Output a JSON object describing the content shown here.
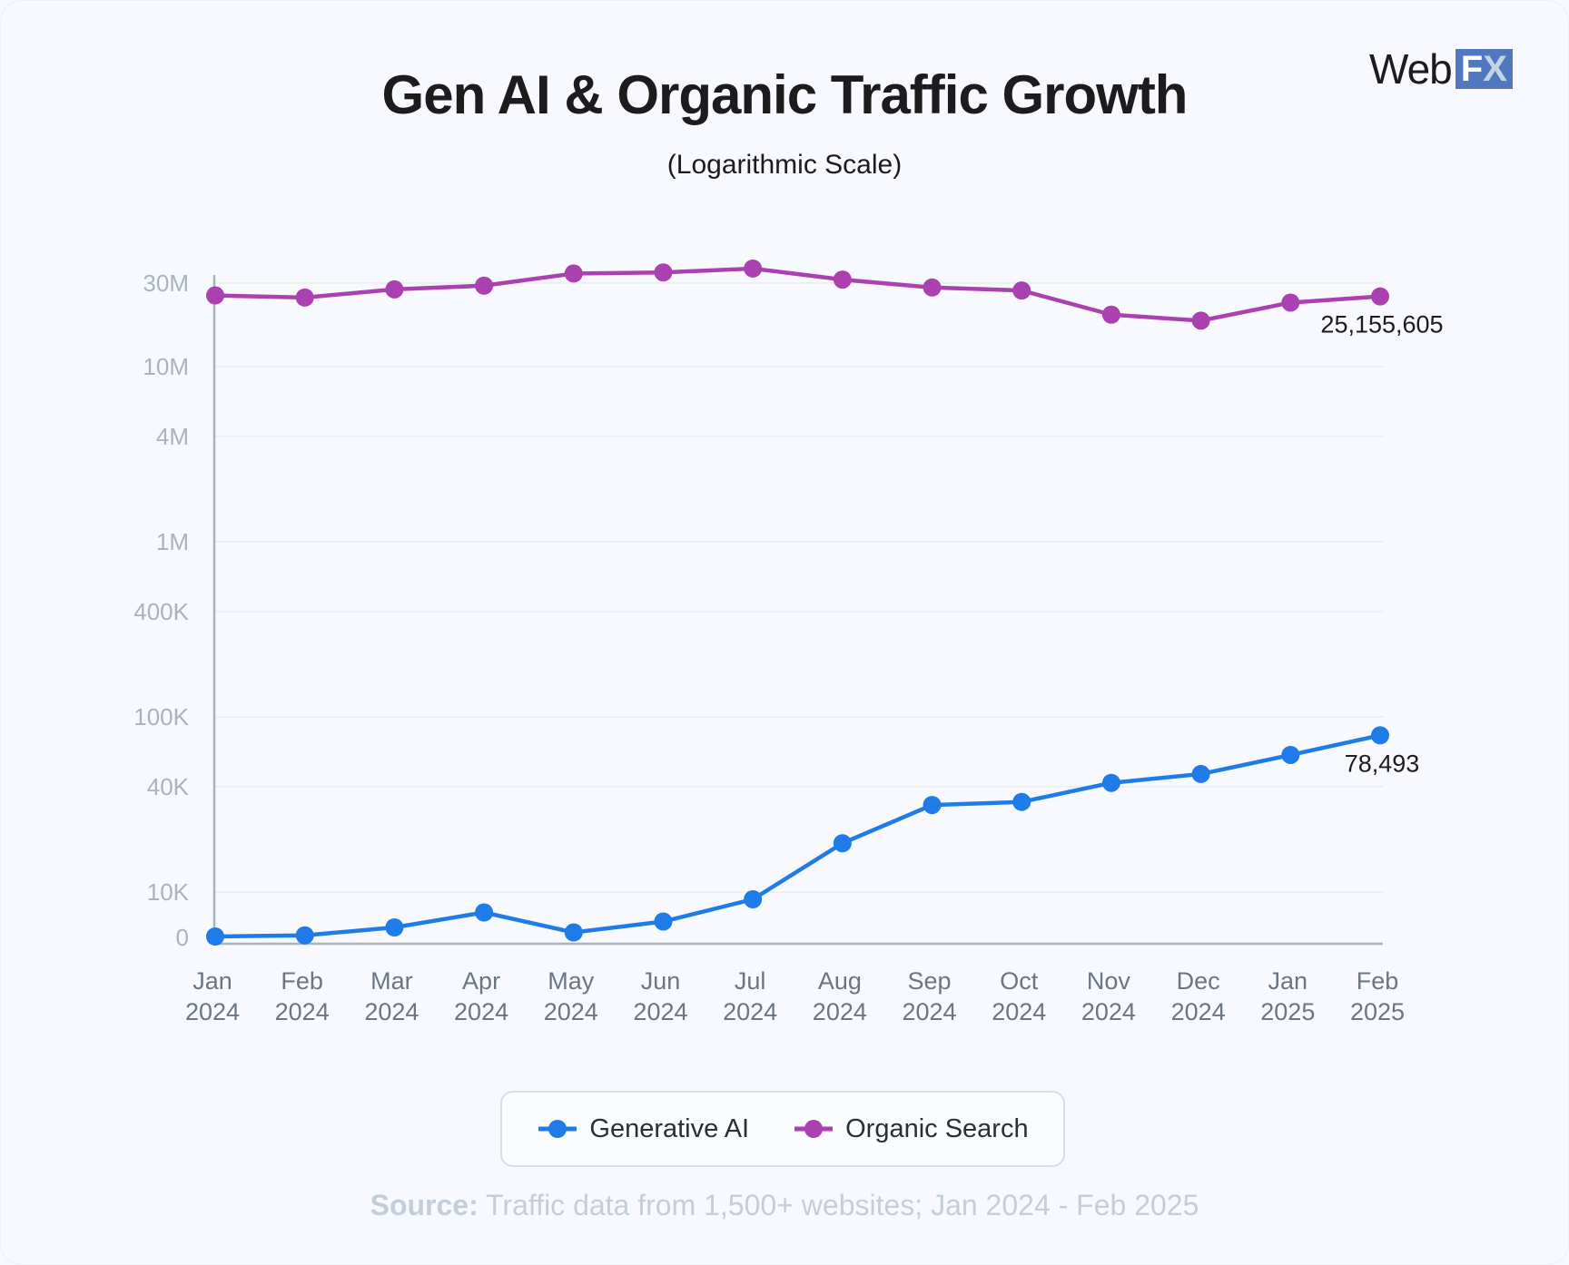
{
  "title": "Gen AI & Organic Traffic Growth",
  "subtitle": "(Logarithmic Scale)",
  "logo": {
    "text": "WebFX",
    "part1": "Web",
    "part2": "FX"
  },
  "source": {
    "label": "Source:",
    "text": "Traffic data from 1,500+ websites;  Jan 2024 - Feb 2025"
  },
  "colors": {
    "generative_ai": "#1f7be8",
    "organic_search": "#ab40b1",
    "grid": "#eceef2",
    "axis": "#a9b3bb"
  },
  "chart_data": {
    "type": "line",
    "title": "Gen AI & Organic Traffic Growth",
    "subtitle": "(Logarithmic Scale)",
    "y_scale": "log",
    "grid": true,
    "legend_placement": "bottom",
    "x": [
      [
        "Jan",
        "2024"
      ],
      [
        "Feb",
        "2024"
      ],
      [
        "Mar",
        "2024"
      ],
      [
        "Apr",
        "2024"
      ],
      [
        "May",
        "2024"
      ],
      [
        "Jun",
        "2024"
      ],
      [
        "Jul",
        "2024"
      ],
      [
        "Aug",
        "2024"
      ],
      [
        "Sep",
        "2024"
      ],
      [
        "Oct",
        "2024"
      ],
      [
        "Nov",
        "2024"
      ],
      [
        "Dec",
        "2024"
      ],
      [
        "Jan",
        "2025"
      ],
      [
        "Feb",
        "2025"
      ]
    ],
    "y_ticks": [
      {
        "value": 0,
        "label": "0"
      },
      {
        "value": 10000,
        "label": "10K"
      },
      {
        "value": 40000,
        "label": "40K"
      },
      {
        "value": 100000,
        "label": "100K"
      },
      {
        "value": 400000,
        "label": "400K"
      },
      {
        "value": 1000000,
        "label": "1M"
      },
      {
        "value": 4000000,
        "label": "4M"
      },
      {
        "value": 10000000,
        "label": "10M"
      },
      {
        "value": 30000000,
        "label": "30M"
      }
    ],
    "series": [
      {
        "name": "Generative AI",
        "color": "#1f7be8",
        "values": [
          200,
          450,
          2200,
          5500,
          1100,
          3500,
          8400,
          19000,
          31400,
          32700,
          42000,
          47200,
          60600,
          78493
        ],
        "end_label": "78,493"
      },
      {
        "name": "Organic Search",
        "color": "#ab40b1",
        "values": [
          25500000,
          24800000,
          27600000,
          29000000,
          34000000,
          34500000,
          36300000,
          31400000,
          28300000,
          27200000,
          19800000,
          18300000,
          23200000,
          25155605
        ],
        "end_label": "25,155,605"
      }
    ]
  }
}
